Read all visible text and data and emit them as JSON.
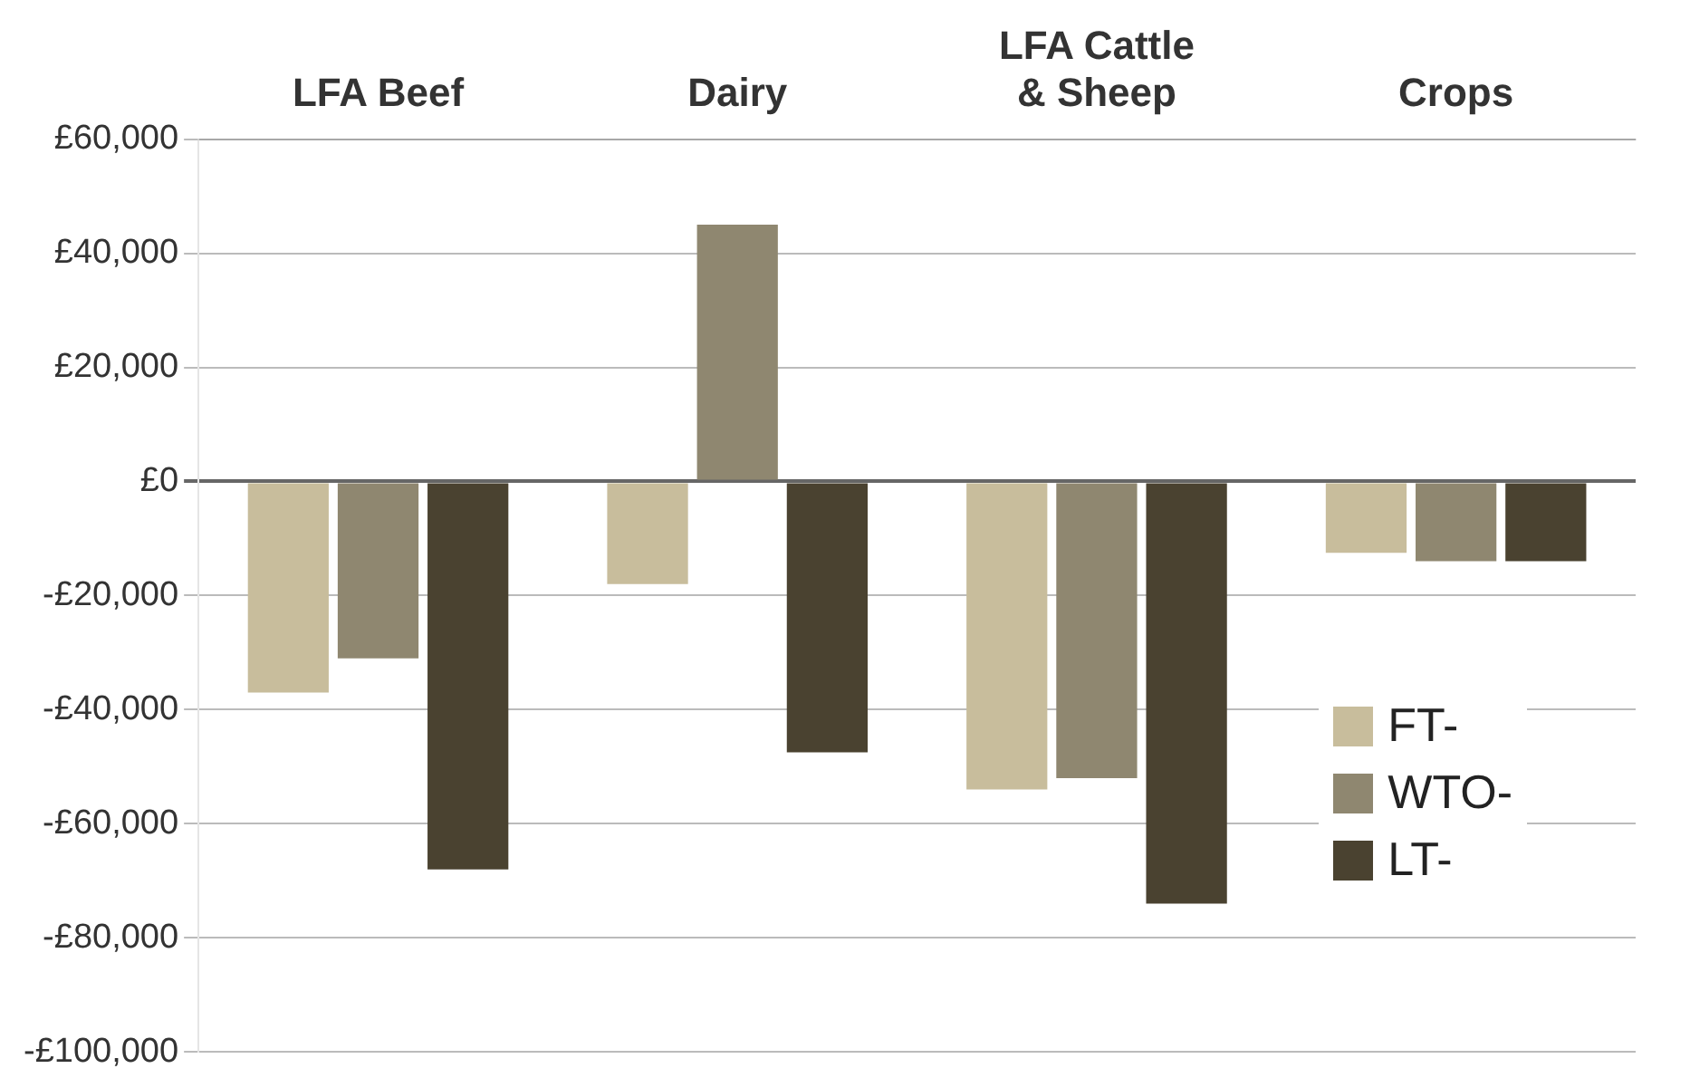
{
  "chart_data": {
    "type": "bar",
    "categories": [
      "LFA Beef",
      "Dairy",
      "LFA Cattle & Sheep",
      "Crops"
    ],
    "series": [
      {
        "name": "FT-",
        "color": "#c8bd9c",
        "values": [
          -37000,
          -18000,
          -54000,
          -12500
        ]
      },
      {
        "name": "WTO-",
        "color": "#8f8770",
        "values": [
          -31000,
          45000,
          -52000,
          -14000
        ]
      },
      {
        "name": "LT-",
        "color": "#4a4230",
        "values": [
          -68000,
          -47500,
          -74000,
          -14000
        ]
      }
    ],
    "ylim": [
      -100000,
      60000
    ],
    "yticks": [
      {
        "value": -100000,
        "label": "-£100,000"
      },
      {
        "value": -80000,
        "label": "-£80,000"
      },
      {
        "value": -60000,
        "label": "-£60,000"
      },
      {
        "value": -40000,
        "label": "-£40,000"
      },
      {
        "value": -20000,
        "label": "-£20,000"
      },
      {
        "value": 0,
        "label": "£0"
      },
      {
        "value": 20000,
        "label": "£20,000"
      },
      {
        "value": 40000,
        "label": "£40,000"
      },
      {
        "value": 60000,
        "label": "£60,000"
      }
    ],
    "grid": "y",
    "legend": "bottom right"
  }
}
